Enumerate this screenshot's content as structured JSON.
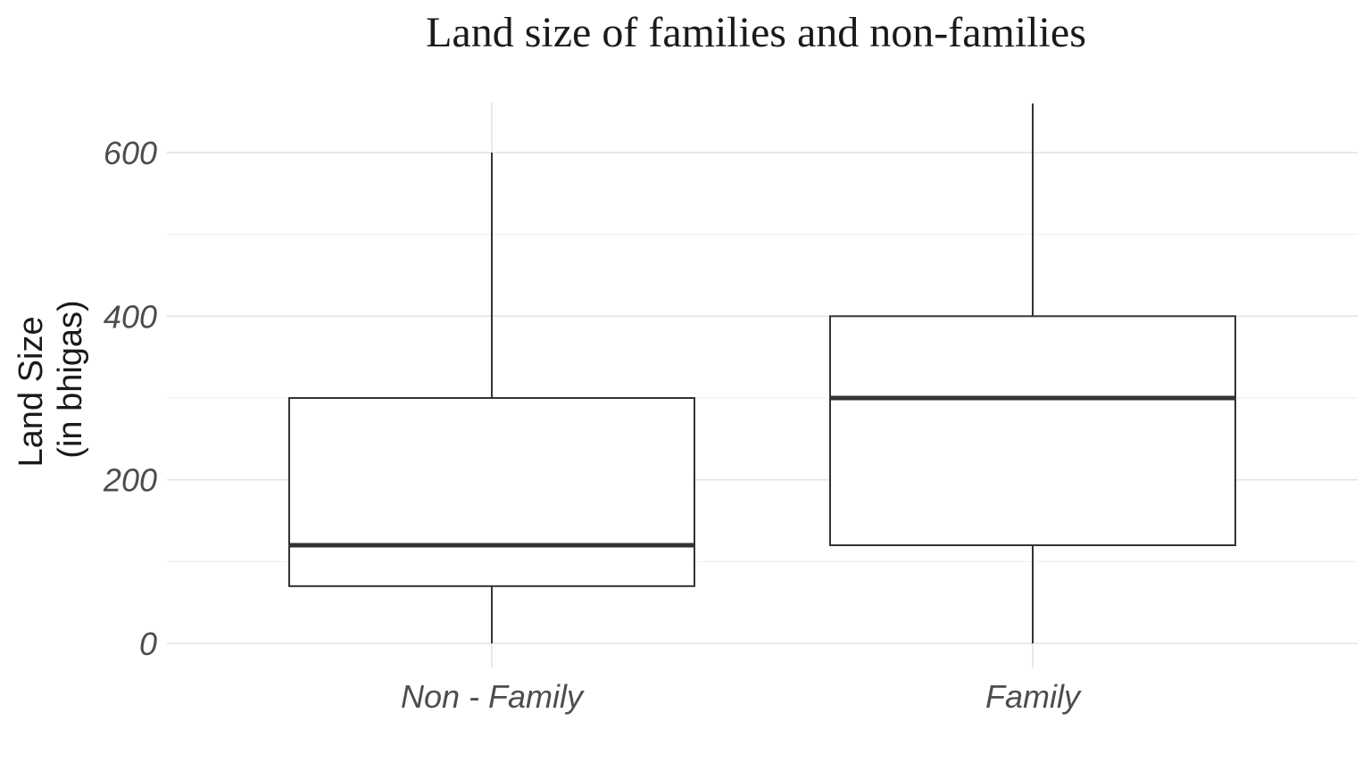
{
  "chart_data": {
    "type": "box",
    "title": "Land size  of families and non-families",
    "xlabel": "",
    "ylabel_lines": [
      "Land Size",
      "(in bhigas)"
    ],
    "ylim": [
      0,
      600
    ],
    "y_ticks": [
      0,
      200,
      400,
      600
    ],
    "grid": true,
    "categories": [
      "Non - Family",
      "Family"
    ],
    "boxes": [
      {
        "category": "Non - Family",
        "min": 0,
        "q1": 70,
        "median": 120,
        "q3": 300,
        "max": 600
      },
      {
        "category": "Family",
        "min": 0,
        "q1": 120,
        "median": 300,
        "q3": 400,
        "max": 660
      }
    ],
    "colors": {
      "box_fill": "#ffffff",
      "box_stroke": "#333333",
      "grid": "#e3e3e3"
    }
  }
}
